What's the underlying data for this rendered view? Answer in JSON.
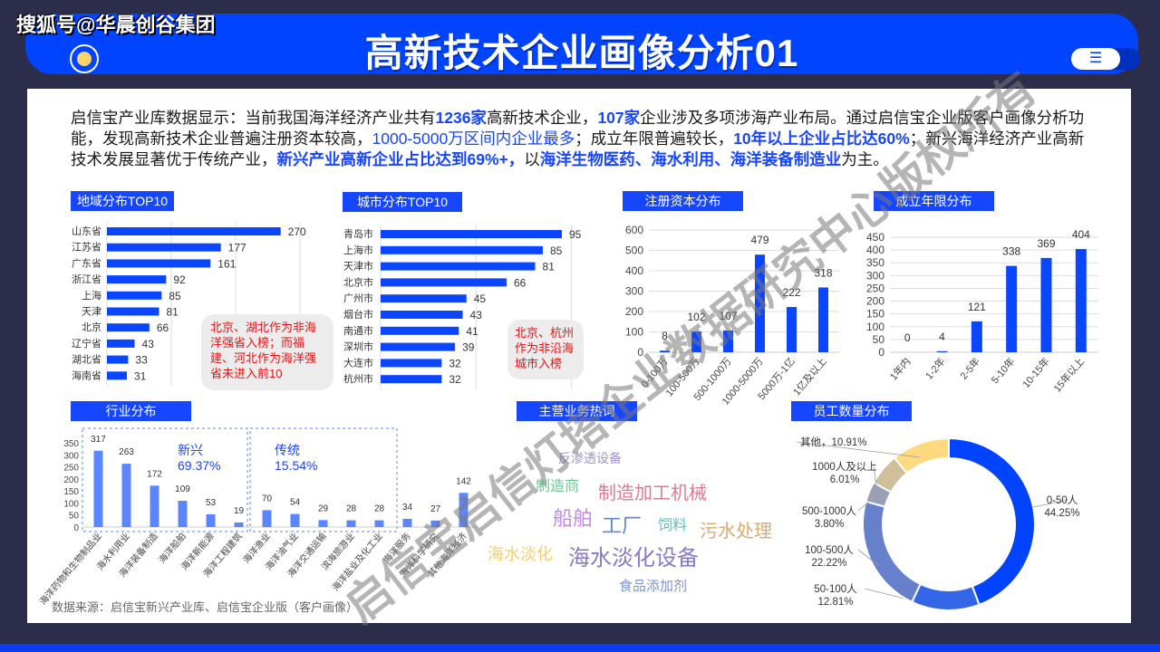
{
  "brand_watermark": "搜狐号@华晨创谷集团",
  "header": {
    "title": "高新技术企业画像分析01",
    "menu_icon": "menu-icon"
  },
  "paragraph": [
    {
      "text": "启信宝产业库数据显示：当前我国海洋经济产业共有",
      "style": "n"
    },
    {
      "text": "1236家",
      "style": "b"
    },
    {
      "text": "高新技术企业，",
      "style": "n"
    },
    {
      "text": "107家",
      "style": "b"
    },
    {
      "text": "企业涉及多项涉海产业布局。通过启信宝企业版客户画像分析功能，发现高新技术企业普遍注册资本较高，",
      "style": "n"
    },
    {
      "text": "1000-5000万区间内企业最多",
      "style": "u"
    },
    {
      "text": "；成立年限普遍较长，",
      "style": "n"
    },
    {
      "text": "10年以上企业占比达60%",
      "style": "b"
    },
    {
      "text": "；新兴海洋经济产业高新技术发展显著优于传统产业，",
      "style": "n"
    },
    {
      "text": "新兴产业高新企业占比达到69%+，",
      "style": "b"
    },
    {
      "text": "以",
      "style": "n"
    },
    {
      "text": "海洋生物医药、海水利用、海洋装备制造业",
      "style": "b"
    },
    {
      "text": "为主。",
      "style": "n"
    }
  ],
  "sections": {
    "region": "地域分布TOP10",
    "city": "城市分布TOP10",
    "capital": "注册资本分布",
    "age": "成立年限分布",
    "industry": "行业分布",
    "keywords": "主营业务热词",
    "staff": "员工数量分布"
  },
  "region_note": "北京、湖北作为非海洋强省入榜；而福建、河北作为海洋强省未进入前10",
  "city_note": "北京、杭州作为非沿海城市入榜",
  "industry_notes": {
    "emerging_label": "新兴",
    "emerging_pct": "69.37%",
    "traditional_label": "传统",
    "traditional_pct": "15.54%"
  },
  "source": "数据来源：启信宝新兴产业库、启信宝企业版（客户画像）",
  "keywords": [
    {
      "text": "反渗透设备",
      "color": "#7a6fc0"
    },
    {
      "text": "制造商",
      "color": "#3cb870"
    },
    {
      "text": "制造加工机械",
      "color": "#d0506a"
    },
    {
      "text": "船舶",
      "color": "#b060e0"
    },
    {
      "text": "工厂",
      "color": "#3060c0"
    },
    {
      "text": "饲料",
      "color": "#20b0a0"
    },
    {
      "text": "污水处理",
      "color": "#d09040"
    },
    {
      "text": "海水淡化",
      "color": "#f0c040"
    },
    {
      "text": "海水淡化设备",
      "color": "#6050b0"
    },
    {
      "text": "食品添加剂",
      "color": "#5070c0"
    }
  ],
  "watermark": "启信宝启信灯塔企业数据研究中心版权所有",
  "colors": {
    "accent": "#0044ff",
    "bar": "#0a45ff",
    "industry_bar": "#5b86ff",
    "note_red": "#f01010"
  },
  "chart_data": [
    {
      "type": "bar",
      "orientation": "horizontal",
      "title": "地域分布TOP10",
      "categories": [
        "山东省",
        "江苏省",
        "广东省",
        "浙江省",
        "上海",
        "天津",
        "北京",
        "辽宁省",
        "湖北省",
        "海南省"
      ],
      "values": [
        270,
        177,
        161,
        92,
        85,
        81,
        66,
        43,
        33,
        31
      ],
      "xlim": [
        0,
        300
      ],
      "grid": true
    },
    {
      "type": "bar",
      "orientation": "horizontal",
      "title": "城市分布TOP10",
      "categories": [
        "青岛市",
        "上海市",
        "天津市",
        "北京市",
        "广州市",
        "烟台市",
        "南通市",
        "深圳市",
        "大连市",
        "杭州市"
      ],
      "values": [
        95,
        85,
        81,
        66,
        45,
        43,
        41,
        39,
        32,
        32
      ],
      "xlim": [
        0,
        100
      ],
      "grid": true
    },
    {
      "type": "bar",
      "title": "注册资本分布",
      "categories": [
        "0-100万",
        "100-500万",
        "500-1000万",
        "1000-5000万",
        "5000万-1亿",
        "1亿及以上"
      ],
      "values": [
        8,
        102,
        107,
        479,
        222,
        318
      ],
      "ylim": [
        0,
        600
      ],
      "yticks": [
        0,
        100,
        200,
        300,
        400,
        500,
        600
      ],
      "grid": true
    },
    {
      "type": "bar",
      "title": "成立年限分布",
      "categories": [
        "1年内",
        "1-2年",
        "2-5年",
        "5-10年",
        "10-15年",
        "15年以上"
      ],
      "values": [
        0,
        4,
        121,
        338,
        369,
        404
      ],
      "ylim": [
        0,
        450
      ],
      "yticks": [
        0,
        50,
        100,
        150,
        200,
        250,
        300,
        350,
        400,
        450
      ],
      "grid": true
    },
    {
      "type": "bar",
      "title": "行业分布",
      "categories": [
        "海洋药物和生物制品业",
        "海水利用业",
        "海洋装备制造",
        "海洋船舶",
        "海洋新能源",
        "海洋工程建筑",
        "海洋渔业",
        "海洋油气业",
        "海洋交通运输",
        "滨海旅游业",
        "海洋盐业及化工业",
        "海洋服务",
        "海洋科学研究",
        "其他海洋经济"
      ],
      "values": [
        317,
        263,
        172,
        109,
        53,
        19,
        70,
        54,
        29,
        28,
        28,
        34,
        27,
        142
      ],
      "ylim": [
        0,
        350
      ],
      "yticks": [
        0,
        50,
        100,
        150,
        200,
        250,
        300,
        350
      ],
      "grid": false
    },
    {
      "type": "pie",
      "title": "员工数量分布",
      "donut": true,
      "categories": [
        "0-50人",
        "50-100人",
        "100-500人",
        "500-1000人",
        "1000人及以上",
        "其他"
      ],
      "values": [
        44.25,
        12.81,
        22.22,
        3.8,
        6.01,
        10.91
      ],
      "labels": [
        "44.25%",
        "12.81%",
        "22.22%",
        "3.80%",
        "6.01%",
        "10.91%"
      ],
      "colors": [
        "#0044ff",
        "#3366e6",
        "#6680cc",
        "#99a0b5",
        "#cfbf9a",
        "#ffd980"
      ]
    }
  ]
}
